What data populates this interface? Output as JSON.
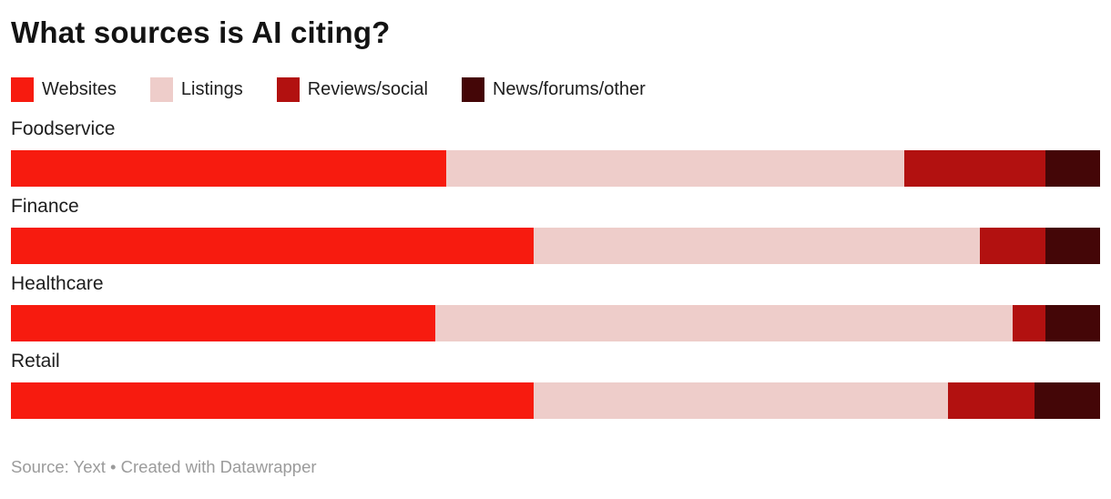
{
  "title": "What sources is AI citing?",
  "footer": {
    "text": "Source: Yext • Created with Datawrapper"
  },
  "colors": {
    "background": "#ffffff",
    "title_text": "#131313",
    "label_text": "#1d1d1d",
    "footer_text": "#9b9b9b"
  },
  "chart_data": {
    "type": "bar",
    "variant": "stacked-horizontal",
    "title": "What sources is AI citing?",
    "xlabel": "",
    "ylabel": "",
    "xlim": [
      0,
      100
    ],
    "value_unit": "%",
    "grid": false,
    "legend_position": "top",
    "categories": [
      "Foodservice",
      "Finance",
      "Healthcare",
      "Retail"
    ],
    "series": [
      {
        "name": "Websites",
        "color": "#f71b0f",
        "values": [
          40,
          48,
          39,
          48
        ]
      },
      {
        "name": "Listings",
        "color": "#eecdca",
        "values": [
          42,
          41,
          53,
          38
        ]
      },
      {
        "name": "Reviews/social",
        "color": "#b21110",
        "values": [
          13,
          6,
          3,
          8
        ]
      },
      {
        "name": "News/forums/other",
        "color": "#440607",
        "values": [
          5,
          5,
          5,
          6
        ]
      }
    ],
    "source": "Yext",
    "attribution": "Created with Datawrapper"
  }
}
